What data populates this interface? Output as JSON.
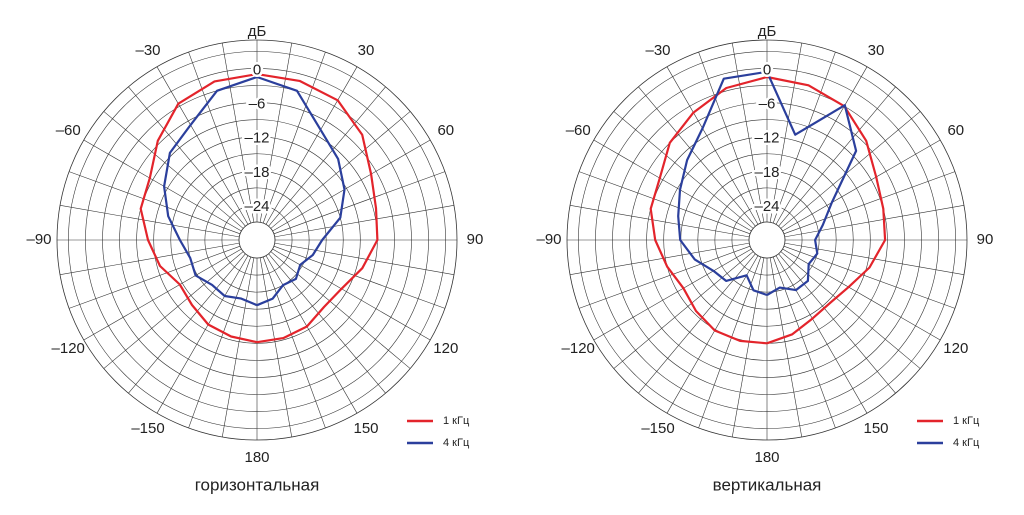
{
  "chart_data": [
    {
      "type": "polar",
      "caption": "горизонтальная",
      "r_label": "дБ",
      "theta": [
        -180,
        -165,
        -150,
        -135,
        -120,
        -105,
        -90,
        -75,
        -60,
        -45,
        -30,
        -15,
        0,
        15,
        30,
        45,
        60,
        75,
        90,
        105,
        120,
        135,
        150,
        165,
        180
      ],
      "rlim": [
        -27,
        5
      ],
      "rticks": [
        {
          "value": -24,
          "label": "–24"
        },
        {
          "value": -18,
          "label": "–18"
        },
        {
          "value": -12,
          "label": "–12"
        },
        {
          "value": -6,
          "label": "–6"
        },
        0
      ],
      "thetaticks": [
        30,
        60,
        90,
        120,
        150,
        180,
        {
          "value": -150,
          "label": "–150"
        },
        {
          "value": -120,
          "label": "–120"
        },
        {
          "value": -90,
          "label": "–90"
        },
        {
          "value": -60,
          "label": "–60"
        },
        {
          "value": -30,
          "label": "–30"
        }
      ],
      "legend": "lower right",
      "series": [
        {
          "name": "1 кГц",
          "color": "#e3242b",
          "values": [
            -12.2,
            -12.6,
            -13,
            -14,
            -14.5,
            -12.5,
            -11,
            -9,
            -8.4,
            -5.5,
            -2.5,
            -1.3,
            -1,
            -1.2,
            -1.8,
            -4,
            -7,
            -8.5,
            -9,
            -11,
            -13,
            -13.5,
            -12.6,
            -12.3,
            -12.2
          ]
        },
        {
          "name": "4 кГц",
          "color": "#2b3f9c",
          "values": [
            -18.7,
            -19.5,
            -18.8,
            -19,
            -17.7,
            -18,
            -16.6,
            -14,
            -11.3,
            -8.5,
            -6.8,
            -3,
            -1.5,
            -3,
            -7.8,
            -10,
            -12.4,
            -15,
            -18.7,
            -20,
            -21.4,
            -20.5,
            -21,
            -19.5,
            -18.7
          ]
        }
      ]
    },
    {
      "type": "polar",
      "caption": "вертикальная",
      "r_label": "дБ",
      "theta": [
        -180,
        -165,
        -150,
        -135,
        -120,
        -105,
        -90,
        -75,
        -60,
        -45,
        -30,
        -15,
        0,
        15,
        30,
        45,
        60,
        75,
        90,
        105,
        120,
        135,
        150,
        165,
        180
      ],
      "rlim": [
        -27,
        5
      ],
      "rticks": [
        {
          "value": -24,
          "label": "–24"
        },
        {
          "value": -18,
          "label": "–18"
        },
        {
          "value": -12,
          "label": "–12"
        },
        {
          "value": -6,
          "label": "–6"
        },
        0
      ],
      "thetaticks": [
        30,
        60,
        90,
        120,
        150,
        180,
        {
          "value": -150,
          "label": "–150"
        },
        {
          "value": -120,
          "label": "–120"
        },
        {
          "value": -90,
          "label": "–90"
        },
        {
          "value": -60,
          "label": "–60"
        },
        {
          "value": -30,
          "label": "–30"
        }
      ],
      "legend": "lower right",
      "series": [
        {
          "name": "1 кГц",
          "color": "#e3242b",
          "values": [
            -12,
            -11.8,
            -11.8,
            -12.5,
            -13.2,
            -12,
            -10.5,
            -9,
            -8.4,
            -6,
            -4.3,
            -2.5,
            -1.5,
            -2,
            -3,
            -5.5,
            -8,
            -9,
            -9.4,
            -11.5,
            -13.6,
            -14.5,
            -14.2,
            -13,
            -12
          ]
        },
        {
          "name": "4 кГц",
          "color": "#2b3f9c",
          "values": [
            -20.5,
            -21,
            -23,
            -20,
            -19.3,
            -17,
            -14.9,
            -14,
            -12.5,
            -10.3,
            -7.5,
            -0.8,
            -0.6,
            -11,
            -2.8,
            -8,
            -17,
            -20,
            -21.7,
            -21,
            -21.7,
            -20,
            -20,
            -21.5,
            -20.5
          ]
        }
      ]
    }
  ]
}
